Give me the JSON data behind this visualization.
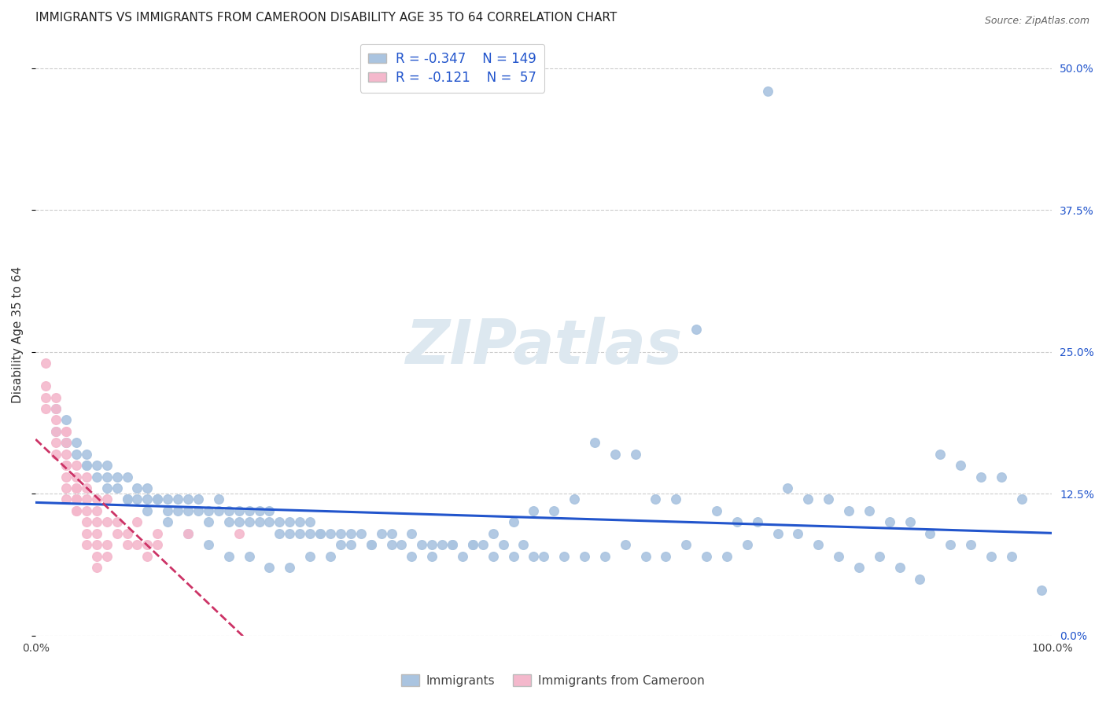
{
  "title": "IMMIGRANTS VS IMMIGRANTS FROM CAMEROON DISABILITY AGE 35 TO 64 CORRELATION CHART",
  "source": "Source: ZipAtlas.com",
  "ylabel": "Disability Age 35 to 64",
  "xlim": [
    0.0,
    1.0
  ],
  "ylim": [
    0.0,
    0.53
  ],
  "yticks": [
    0.0,
    0.125,
    0.25,
    0.375,
    0.5
  ],
  "ytick_labels": [
    "0.0%",
    "12.5%",
    "25.0%",
    "37.5%",
    "50.0%"
  ],
  "series1": {
    "name": "Immigrants",
    "color": "#aac4e0",
    "line_color": "#2255cc",
    "R": -0.347,
    "N": 149,
    "x": [
      0.02,
      0.02,
      0.03,
      0.03,
      0.04,
      0.04,
      0.05,
      0.05,
      0.06,
      0.06,
      0.07,
      0.07,
      0.08,
      0.08,
      0.09,
      0.09,
      0.1,
      0.1,
      0.11,
      0.11,
      0.12,
      0.12,
      0.13,
      0.13,
      0.14,
      0.14,
      0.15,
      0.15,
      0.16,
      0.16,
      0.17,
      0.17,
      0.18,
      0.18,
      0.19,
      0.19,
      0.2,
      0.2,
      0.21,
      0.21,
      0.22,
      0.22,
      0.23,
      0.23,
      0.24,
      0.24,
      0.25,
      0.25,
      0.26,
      0.26,
      0.27,
      0.27,
      0.28,
      0.28,
      0.29,
      0.3,
      0.3,
      0.31,
      0.32,
      0.33,
      0.34,
      0.35,
      0.36,
      0.37,
      0.38,
      0.39,
      0.4,
      0.41,
      0.42,
      0.43,
      0.44,
      0.45,
      0.46,
      0.47,
      0.48,
      0.49,
      0.5,
      0.52,
      0.54,
      0.56,
      0.58,
      0.6,
      0.62,
      0.64,
      0.66,
      0.68,
      0.7,
      0.72,
      0.74,
      0.76,
      0.78,
      0.8,
      0.82,
      0.84,
      0.86,
      0.88,
      0.9,
      0.92,
      0.94,
      0.96,
      0.55,
      0.57,
      0.59,
      0.61,
      0.63,
      0.65,
      0.67,
      0.69,
      0.71,
      0.73,
      0.75,
      0.77,
      0.79,
      0.81,
      0.83,
      0.85,
      0.87,
      0.89,
      0.91,
      0.93,
      0.95,
      0.97,
      0.99,
      0.53,
      0.51,
      0.49,
      0.47,
      0.45,
      0.43,
      0.41,
      0.39,
      0.37,
      0.35,
      0.33,
      0.31,
      0.29,
      0.27,
      0.25,
      0.23,
      0.21,
      0.19,
      0.17,
      0.15,
      0.13,
      0.11,
      0.09,
      0.07,
      0.05,
      0.03
    ],
    "y": [
      0.2,
      0.18,
      0.19,
      0.17,
      0.17,
      0.16,
      0.16,
      0.15,
      0.15,
      0.14,
      0.15,
      0.14,
      0.14,
      0.13,
      0.14,
      0.12,
      0.13,
      0.12,
      0.13,
      0.12,
      0.12,
      0.12,
      0.12,
      0.11,
      0.12,
      0.11,
      0.12,
      0.11,
      0.11,
      0.12,
      0.11,
      0.1,
      0.11,
      0.12,
      0.11,
      0.1,
      0.11,
      0.1,
      0.1,
      0.11,
      0.1,
      0.11,
      0.1,
      0.11,
      0.1,
      0.09,
      0.1,
      0.09,
      0.1,
      0.09,
      0.09,
      0.1,
      0.09,
      0.09,
      0.09,
      0.09,
      0.08,
      0.09,
      0.09,
      0.08,
      0.09,
      0.08,
      0.08,
      0.09,
      0.08,
      0.08,
      0.08,
      0.08,
      0.07,
      0.08,
      0.08,
      0.07,
      0.08,
      0.07,
      0.08,
      0.07,
      0.07,
      0.07,
      0.07,
      0.07,
      0.08,
      0.07,
      0.07,
      0.08,
      0.07,
      0.07,
      0.08,
      0.48,
      0.13,
      0.12,
      0.12,
      0.11,
      0.11,
      0.1,
      0.1,
      0.09,
      0.08,
      0.08,
      0.07,
      0.07,
      0.17,
      0.16,
      0.16,
      0.12,
      0.12,
      0.27,
      0.11,
      0.1,
      0.1,
      0.09,
      0.09,
      0.08,
      0.07,
      0.06,
      0.07,
      0.06,
      0.05,
      0.16,
      0.15,
      0.14,
      0.14,
      0.12,
      0.04,
      0.12,
      0.11,
      0.11,
      0.1,
      0.09,
      0.08,
      0.08,
      0.07,
      0.07,
      0.09,
      0.08,
      0.08,
      0.07,
      0.07,
      0.06,
      0.06,
      0.07,
      0.07,
      0.08,
      0.09,
      0.1,
      0.11,
      0.12,
      0.13,
      0.15,
      0.17
    ]
  },
  "series2": {
    "name": "Immigrants from Cameroon",
    "color": "#f4b8cc",
    "line_color": "#cc3366",
    "R": -0.121,
    "N": 57,
    "x": [
      0.01,
      0.01,
      0.01,
      0.01,
      0.02,
      0.02,
      0.02,
      0.02,
      0.02,
      0.02,
      0.03,
      0.03,
      0.03,
      0.03,
      0.03,
      0.03,
      0.03,
      0.03,
      0.03,
      0.04,
      0.04,
      0.04,
      0.04,
      0.04,
      0.04,
      0.04,
      0.04,
      0.05,
      0.05,
      0.05,
      0.05,
      0.05,
      0.05,
      0.05,
      0.06,
      0.06,
      0.06,
      0.06,
      0.06,
      0.06,
      0.06,
      0.07,
      0.07,
      0.07,
      0.07,
      0.08,
      0.08,
      0.09,
      0.09,
      0.1,
      0.1,
      0.11,
      0.11,
      0.12,
      0.12,
      0.15,
      0.2
    ],
    "y": [
      0.24,
      0.22,
      0.21,
      0.2,
      0.21,
      0.19,
      0.18,
      0.2,
      0.17,
      0.16,
      0.18,
      0.17,
      0.18,
      0.16,
      0.15,
      0.14,
      0.15,
      0.13,
      0.12,
      0.15,
      0.14,
      0.13,
      0.12,
      0.11,
      0.13,
      0.12,
      0.11,
      0.12,
      0.13,
      0.14,
      0.1,
      0.09,
      0.11,
      0.08,
      0.12,
      0.1,
      0.09,
      0.11,
      0.08,
      0.07,
      0.06,
      0.12,
      0.1,
      0.08,
      0.07,
      0.1,
      0.09,
      0.09,
      0.08,
      0.1,
      0.08,
      0.08,
      0.07,
      0.09,
      0.08,
      0.09,
      0.09
    ]
  },
  "background_color": "#ffffff",
  "grid_color": "#cccccc",
  "title_fontsize": 11,
  "axis_label_fontsize": 11,
  "tick_fontsize": 10,
  "legend_R_color": "#2255cc",
  "watermark": "ZIPatlas"
}
